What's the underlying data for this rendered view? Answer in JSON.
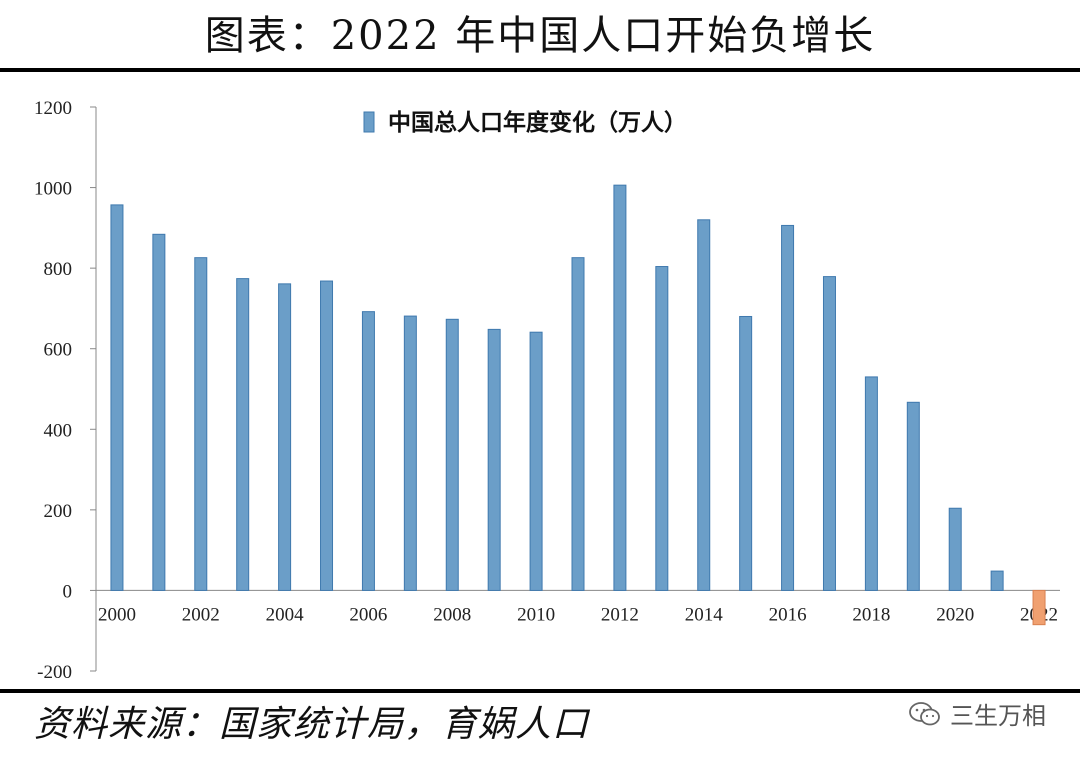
{
  "header": {
    "title": "图表：2022 年中国人口开始负增长"
  },
  "footer": {
    "source": "资料来源：国家统计局，育娲人口",
    "watermark": "三生万相"
  },
  "chart_data": {
    "type": "bar",
    "title": "",
    "xlabel": "",
    "ylabel": "",
    "legend": {
      "label": "中国总人口年度变化（万人）",
      "placement": "top-center"
    },
    "categories": [
      "2000",
      "2001",
      "2002",
      "2003",
      "2004",
      "2005",
      "2006",
      "2007",
      "2008",
      "2009",
      "2010",
      "2011",
      "2012",
      "2013",
      "2014",
      "2015",
      "2016",
      "2017",
      "2018",
      "2019",
      "2020",
      "2021",
      "2022"
    ],
    "x_tick_labels": [
      "2000",
      "2002",
      "2004",
      "2006",
      "2008",
      "2010",
      "2012",
      "2014",
      "2016",
      "2018",
      "2020",
      "2022"
    ],
    "series": [
      {
        "name": "中国总人口年度变化（万人）",
        "values": [
          957,
          884,
          826,
          774,
          761,
          768,
          692,
          681,
          673,
          648,
          641,
          826,
          1006,
          804,
          920,
          680,
          906,
          779,
          530,
          467,
          204,
          48,
          -85
        ]
      }
    ],
    "ylim": [
      -200,
      1200
    ],
    "y_ticks": [
      -200,
      0,
      200,
      400,
      600,
      800,
      1000,
      1200
    ],
    "grid": false,
    "colors": {
      "positive_bar": "#6b9ec8",
      "positive_bar_edge": "#3f79ae",
      "negative_bar": "#f0a070",
      "negative_bar_edge": "#d88050",
      "axis": "#888888"
    }
  }
}
